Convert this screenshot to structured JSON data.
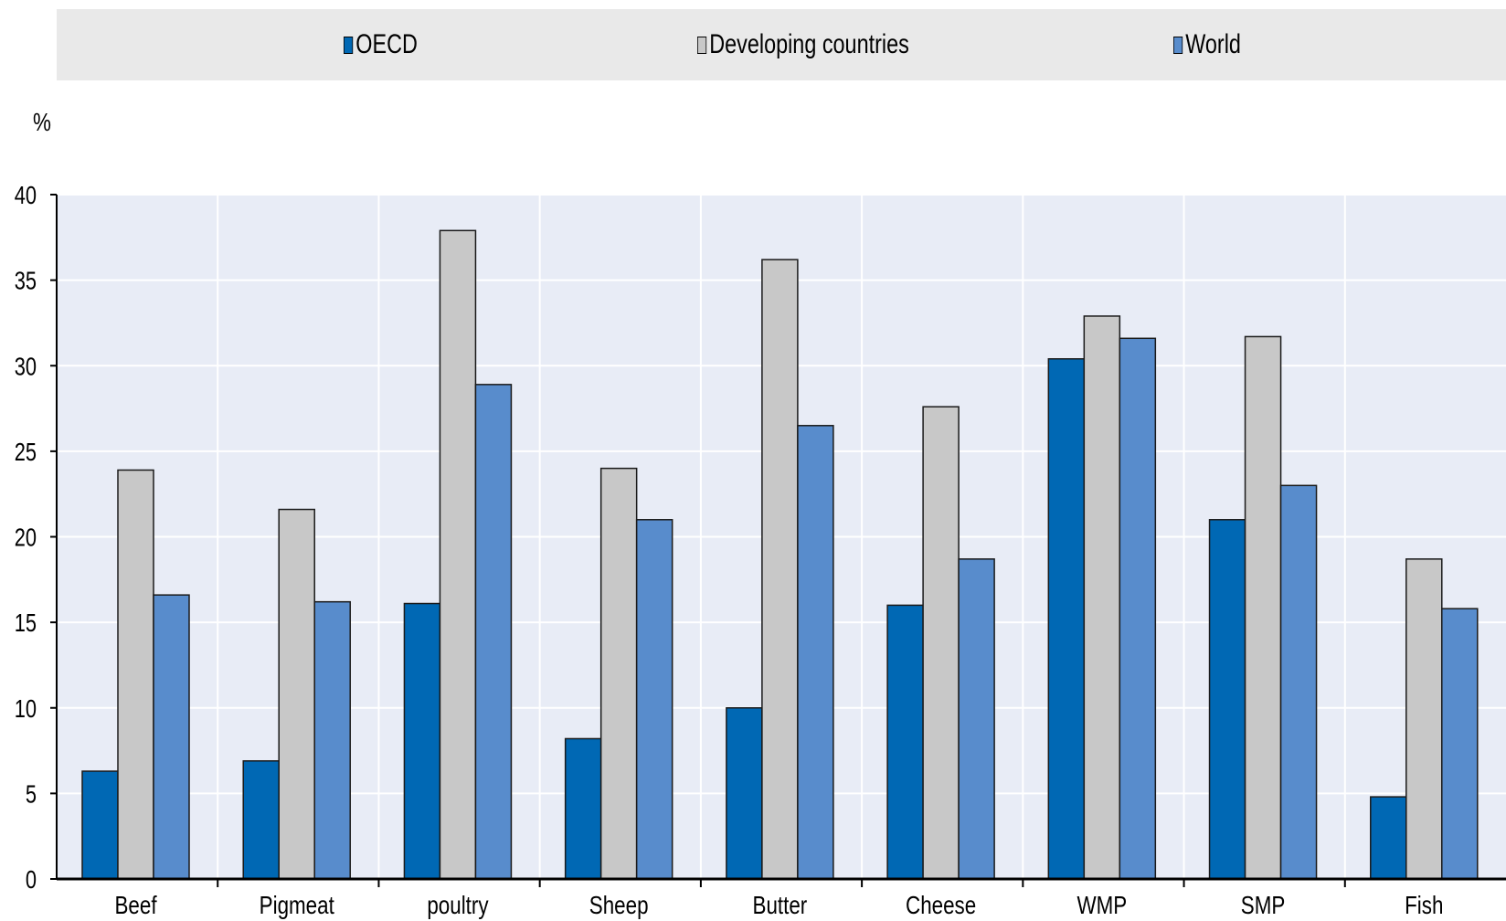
{
  "chart_data": {
    "type": "bar",
    "unit_label": "%",
    "categories": [
      "Beef",
      "Pigmeat",
      "poultry",
      "Sheep",
      "Butter",
      "Cheese",
      "WMP",
      "SMP",
      "Fish"
    ],
    "series": [
      {
        "name": "OECD",
        "color": "#0068b4",
        "values": [
          6.3,
          6.9,
          16.1,
          8.2,
          10.0,
          16.0,
          30.4,
          21.0,
          4.8
        ]
      },
      {
        "name": "Developing countries",
        "color": "#c8c8c8",
        "values": [
          23.9,
          21.6,
          37.9,
          24.0,
          36.2,
          27.6,
          32.9,
          31.7,
          18.7
        ]
      },
      {
        "name": "World",
        "color": "#588ccc",
        "values": [
          16.6,
          16.2,
          28.9,
          21.0,
          26.5,
          18.7,
          31.6,
          23.0,
          15.8
        ]
      }
    ],
    "yticks": [
      "0",
      "5",
      "10",
      "15",
      "20",
      "25",
      "30",
      "35",
      "40"
    ],
    "ylim": [
      0,
      40
    ],
    "grid": true,
    "legend_position": "top"
  }
}
